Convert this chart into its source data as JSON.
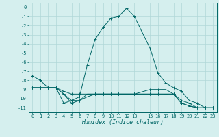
{
  "xlabel": "Humidex (Indice chaleur)",
  "background_color": "#d5efee",
  "line_color": "#006666",
  "grid_color": "#b0d8d8",
  "xlim": [
    -0.5,
    23.5
  ],
  "ylim": [
    -11.5,
    0.5
  ],
  "xticks": [
    0,
    1,
    2,
    3,
    4,
    5,
    6,
    7,
    8,
    9,
    10,
    11,
    12,
    13,
    15,
    16,
    17,
    18,
    19,
    20,
    21,
    22,
    23
  ],
  "yticks": [
    0,
    -1,
    -2,
    -3,
    -4,
    -5,
    -6,
    -7,
    -8,
    -9,
    -10,
    -11
  ],
  "series": [
    {
      "x": [
        0,
        1,
        2,
        3,
        4,
        5,
        6,
        7,
        8,
        9,
        10,
        11,
        12,
        13,
        15,
        16,
        17,
        18,
        19,
        20,
        21,
        22,
        23
      ],
      "y": [
        -7.5,
        -8.0,
        -8.8,
        -8.8,
        -9.5,
        -10.2,
        -9.8,
        -6.3,
        -3.5,
        -2.2,
        -1.2,
        -1.0,
        -0.1,
        -1.0,
        -4.5,
        -7.2,
        -8.3,
        -8.8,
        -9.2,
        -10.2,
        -10.5,
        -11.0,
        -11.0
      ]
    },
    {
      "x": [
        0,
        1,
        2,
        3,
        4,
        5,
        6,
        7,
        8,
        9,
        10,
        11,
        12,
        13,
        15,
        16,
        17,
        18,
        19,
        20,
        21,
        22,
        23
      ],
      "y": [
        -8.8,
        -8.8,
        -8.8,
        -8.8,
        -9.2,
        -9.5,
        -9.5,
        -9.5,
        -9.5,
        -9.5,
        -9.5,
        -9.5,
        -9.5,
        -9.5,
        -9.0,
        -9.0,
        -9.0,
        -9.5,
        -10.2,
        -10.5,
        -11.0,
        -11.0,
        -11.0
      ]
    },
    {
      "x": [
        0,
        1,
        2,
        3,
        4,
        5,
        6,
        7,
        8,
        9,
        10,
        11,
        12,
        13,
        15,
        16,
        17,
        18,
        19,
        20,
        21,
        22,
        23
      ],
      "y": [
        -8.8,
        -8.8,
        -8.8,
        -8.8,
        -9.5,
        -10.5,
        -10.2,
        -9.5,
        -9.5,
        -9.5,
        -9.5,
        -9.5,
        -9.5,
        -9.5,
        -9.5,
        -9.5,
        -9.5,
        -9.5,
        -10.5,
        -10.8,
        -11.0,
        -11.0,
        -11.0
      ]
    },
    {
      "x": [
        0,
        1,
        2,
        3,
        4,
        5,
        6,
        7,
        8,
        9,
        10,
        11,
        12,
        13,
        15,
        16,
        17,
        18,
        19,
        20,
        21,
        22,
        23
      ],
      "y": [
        -8.8,
        -8.8,
        -8.8,
        -8.8,
        -10.5,
        -10.2,
        -10.2,
        -9.8,
        -9.5,
        -9.5,
        -9.5,
        -9.5,
        -9.5,
        -9.5,
        -9.5,
        -9.5,
        -9.5,
        -9.5,
        -10.5,
        -10.8,
        -11.0,
        -11.0,
        -11.0
      ]
    }
  ]
}
